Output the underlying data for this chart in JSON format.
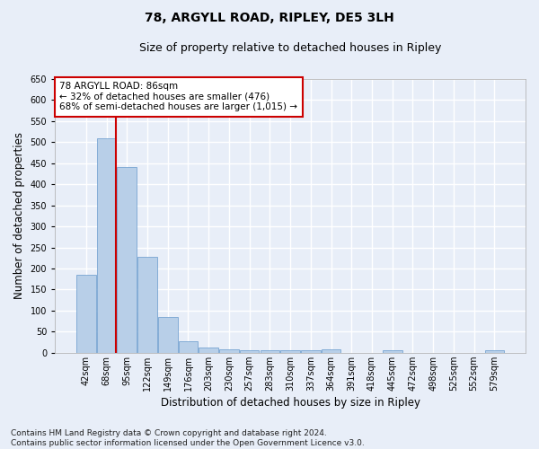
{
  "title": "78, ARGYLL ROAD, RIPLEY, DE5 3LH",
  "subtitle": "Size of property relative to detached houses in Ripley",
  "xlabel": "Distribution of detached houses by size in Ripley",
  "ylabel": "Number of detached properties",
  "categories": [
    "42sqm",
    "68sqm",
    "95sqm",
    "122sqm",
    "149sqm",
    "176sqm",
    "203sqm",
    "230sqm",
    "257sqm",
    "283sqm",
    "310sqm",
    "337sqm",
    "364sqm",
    "391sqm",
    "418sqm",
    "445sqm",
    "472sqm",
    "498sqm",
    "525sqm",
    "552sqm",
    "579sqm"
  ],
  "values": [
    185,
    510,
    441,
    227,
    84,
    28,
    13,
    9,
    6,
    6,
    6,
    6,
    8,
    0,
    0,
    5,
    0,
    0,
    0,
    0,
    5
  ],
  "bar_color": "#b8cfe8",
  "bar_edge_color": "#6699cc",
  "vline_color": "#cc0000",
  "vline_x_index": 1.5,
  "annotation_text": "78 ARGYLL ROAD: 86sqm\n← 32% of detached houses are smaller (476)\n68% of semi-detached houses are larger (1,015) →",
  "annotation_box_color": "white",
  "annotation_box_edge": "#cc0000",
  "ylim": [
    0,
    650
  ],
  "yticks": [
    0,
    50,
    100,
    150,
    200,
    250,
    300,
    350,
    400,
    450,
    500,
    550,
    600,
    650
  ],
  "footnote": "Contains HM Land Registry data © Crown copyright and database right 2024.\nContains public sector information licensed under the Open Government Licence v3.0.",
  "background_color": "#e8eef8",
  "plot_bg_color": "#e8eef8",
  "grid_color": "#ffffff",
  "title_fontsize": 10,
  "subtitle_fontsize": 9,
  "label_fontsize": 8.5,
  "tick_fontsize": 7,
  "footnote_fontsize": 6.5
}
